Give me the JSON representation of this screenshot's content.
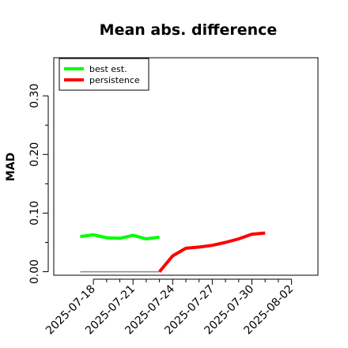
{
  "chart_data": {
    "type": "line",
    "title": "Mean abs. difference",
    "xlabel": "",
    "ylabel": "MAD",
    "xlim": [
      "2025-07-15",
      "2025-08-04"
    ],
    "ylim": [
      -0.006,
      0.365
    ],
    "y_ticks": [
      "0.00",
      "0.10",
      "0.20",
      "0.30"
    ],
    "x_ticks": [
      "2025-07-18",
      "2025-07-21",
      "2025-07-24",
      "2025-07-27",
      "2025-07-30",
      "2025-08-02"
    ],
    "legend_position": "top-left",
    "grid": false,
    "series": [
      {
        "name": "best est.",
        "color": "#00ff00",
        "x": [
          "2025-07-17",
          "2025-07-18",
          "2025-07-19",
          "2025-07-20",
          "2025-07-21",
          "2025-07-22",
          "2025-07-23"
        ],
        "y": [
          0.06,
          0.063,
          0.058,
          0.057,
          0.062,
          0.056,
          0.059
        ]
      },
      {
        "name": "persistence",
        "color": "#ff0000",
        "x": [
          "2025-07-23",
          "2025-07-24",
          "2025-07-25",
          "2025-07-26",
          "2025-07-27",
          "2025-07-28",
          "2025-07-29",
          "2025-07-30",
          "2025-07-31"
        ],
        "y": [
          0.0,
          0.027,
          0.04,
          0.042,
          0.045,
          0.05,
          0.056,
          0.064,
          0.066
        ]
      },
      {
        "name": "",
        "color": "#888888",
        "x": [
          "2025-07-17",
          "2025-07-23"
        ],
        "y": [
          0.0,
          0.0
        ]
      }
    ]
  }
}
